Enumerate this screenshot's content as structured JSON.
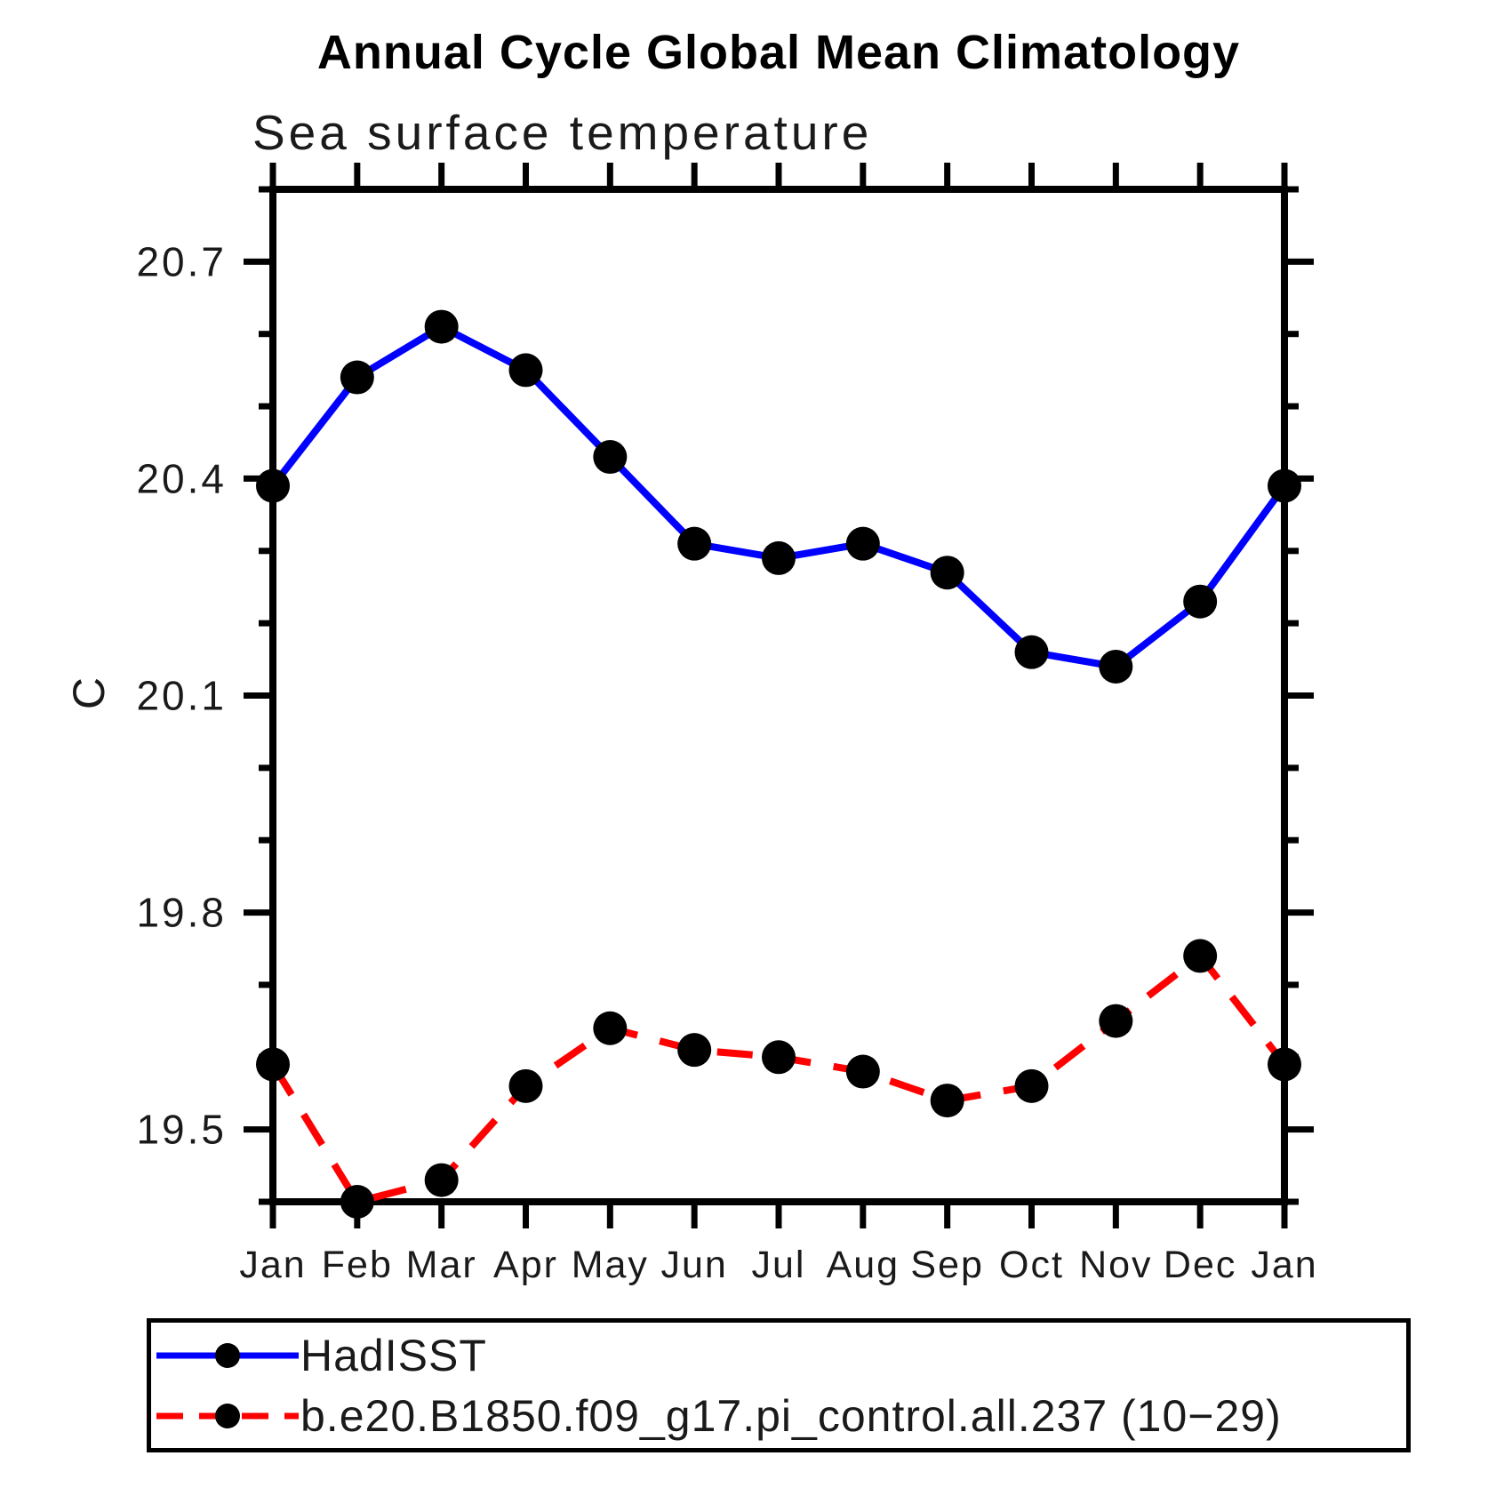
{
  "title": "Annual Cycle Global Mean Climatology",
  "subtitle": "Sea surface temperature",
  "chart_data": {
    "type": "line",
    "categories": [
      "Jan",
      "Feb",
      "Mar",
      "Apr",
      "May",
      "Jun",
      "Jul",
      "Aug",
      "Sep",
      "Oct",
      "Nov",
      "Dec",
      "Jan"
    ],
    "series": [
      {
        "name": "HadISST",
        "color": "#0000ff",
        "line_style": "solid",
        "marker": "filled-circle",
        "marker_color": "#000000",
        "values": [
          20.39,
          20.54,
          20.61,
          20.55,
          20.43,
          20.31,
          20.29,
          20.31,
          20.27,
          20.16,
          20.14,
          20.23,
          20.39
        ]
      },
      {
        "name": "b.e20.B1850.f09_g17.pi_control.all.237 (10−29)",
        "color": "#ff0000",
        "line_style": "dashed",
        "marker": "filled-circle",
        "marker_color": "#000000",
        "values": [
          19.59,
          19.4,
          19.43,
          19.56,
          19.64,
          19.61,
          19.6,
          19.58,
          19.54,
          19.56,
          19.65,
          19.74,
          19.59
        ]
      }
    ],
    "xlabel": "",
    "ylabel": "C",
    "ylim": [
      19.4,
      20.8
    ],
    "y_major_ticks": [
      20.7,
      20.4,
      20.1,
      19.8,
      19.5
    ],
    "y_tick_labels": [
      "20.7",
      "20.4",
      "20.1",
      "19.8",
      "19.5"
    ],
    "y_minor_step": 0.1,
    "grid": false,
    "frame": "box",
    "legend_position": "bottom-left"
  }
}
